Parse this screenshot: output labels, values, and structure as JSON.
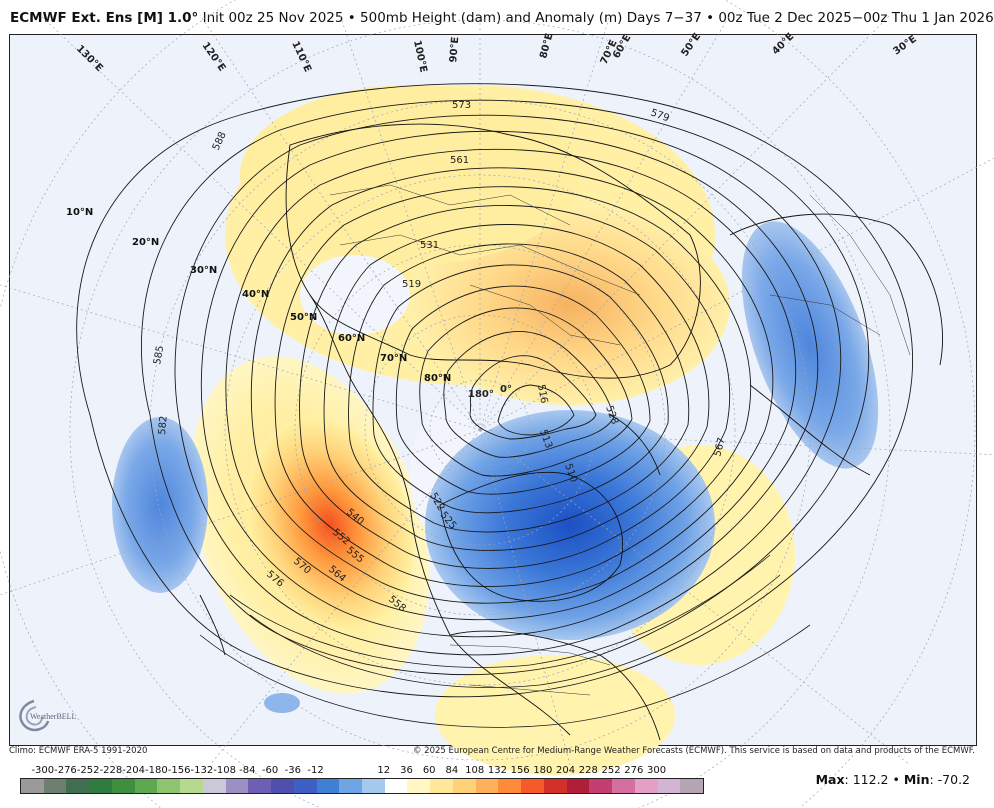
{
  "header": {
    "product": "ECMWF Ext. Ens [M] 1.0°",
    "details": "Init 00z 25 Nov 2025 • 500mb Height (dam) and Anomaly (m)   Days 7−37 • 00z Tue 2 Dec 2025−00z Thu 1 Jan 2026"
  },
  "map": {
    "latitude_labels": [
      "10°N",
      "20°N",
      "30°N",
      "40°N",
      "50°N",
      "60°N",
      "70°N",
      "80°N"
    ],
    "longitude_labels": [
      "130°E",
      "120°E",
      "110°E",
      "100°E",
      "90°E",
      "80°E",
      "70°E",
      "60°E",
      "50°E",
      "40°E",
      "30°E",
      "180°",
      "0°"
    ],
    "contour_labels": [
      "588",
      "585",
      "582",
      "579",
      "576",
      "573",
      "570",
      "567",
      "564",
      "561",
      "558",
      "555",
      "552",
      "540",
      "531",
      "528",
      "525",
      "522",
      "519",
      "516",
      "513",
      "510"
    ],
    "logo_text": "WeatherBELL"
  },
  "footer": {
    "climo": "Climo: ECMWF ERA-5 1991-2020",
    "copyright": "© 2025 European Centre for Medium-Range Weather Forecasts (ECMWF). This service is based on data and products of the ECMWF."
  },
  "colorbar": {
    "tick_labels": [
      "-300",
      "-276",
      "-252",
      "-228",
      "-204",
      "-180",
      "-156",
      "-132",
      "-108",
      "-84",
      "-60",
      "-36",
      "-12",
      "12",
      "36",
      "60",
      "84",
      "108",
      "132",
      "156",
      "180",
      "204",
      "228",
      "252",
      "276",
      "300"
    ],
    "colors": [
      "#9a9a9a",
      "#6f7f6f",
      "#3f6f4f",
      "#2f7a3f",
      "#3f8f3f",
      "#5fa84f",
      "#8fc46f",
      "#b7d88f",
      "#c9c9d9",
      "#9b8fc4",
      "#6f5fb4",
      "#4f4fae",
      "#3f5fc4",
      "#3f7fd4",
      "#6fa4e4",
      "#a4c8ee",
      "#ffffff",
      "#fff8c4",
      "#ffe89a",
      "#ffd27a",
      "#ffb05a",
      "#ff8a3a",
      "#f45a2a",
      "#d4302a",
      "#b01f3a",
      "#c43f6f",
      "#d46f9f",
      "#e49fc4",
      "#d4b4d4",
      "#b4a4b4"
    ],
    "max_label": "Max",
    "max_value": "112.2",
    "min_label": "Min",
    "min_value": "-70.2"
  }
}
